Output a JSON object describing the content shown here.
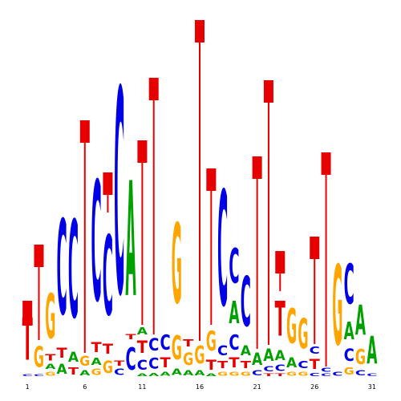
{
  "chart_data": {
    "type": "logo",
    "colors": {
      "A": "#00a000",
      "C": "#0000e6",
      "G": "#ffa500",
      "T": "#e60000",
      "error": "#e60000"
    },
    "ylim": [
      0,
      460
    ],
    "categories": [
      "1",
      null,
      null,
      null,
      null,
      "6",
      null,
      null,
      null,
      null,
      "11",
      null,
      null,
      null,
      null,
      "16",
      null,
      null,
      null,
      null,
      "21",
      null,
      null,
      null,
      null,
      "26",
      null,
      null,
      null,
      null,
      "31"
    ],
    "positions": [
      {
        "letters": [
          "C",
          "T"
        ],
        "values": [
          4,
          85
        ],
        "error": 95
      },
      {
        "letters": [
          "C",
          "G"
        ],
        "values": [
          4,
          42
        ],
        "error": 165
      },
      {
        "letters": [
          "G",
          "A",
          "T",
          "G"
        ],
        "values": [
          8,
          10,
          12,
          90
        ]
      },
      {
        "letters": [
          "A",
          "T",
          "C"
        ],
        "values": [
          20,
          20,
          190
        ]
      },
      {
        "letters": [
          "T",
          "A",
          "C"
        ],
        "values": [
          15,
          20,
          195
        ]
      },
      {
        "letters": [
          "A",
          "G"
        ],
        "values": [
          10,
          20
        ],
        "error": 320
      },
      {
        "letters": [
          "G",
          "A",
          "T",
          "C"
        ],
        "values": [
          12,
          15,
          20,
          240
        ]
      },
      {
        "letters": [
          "G",
          "T",
          "C"
        ],
        "values": [
          25,
          20,
          160
        ],
        "error": 255
      },
      {
        "letters": [
          "C",
          "T",
          "C"
        ],
        "values": [
          12,
          10,
          410
        ]
      },
      {
        "letters": [
          "C",
          "T",
          "A"
        ],
        "values": [
          45,
          10,
          230
        ]
      },
      {
        "letters": [
          "A",
          "C",
          "T",
          "A"
        ],
        "values": [
          5,
          20,
          25,
          15
        ],
        "error": 295
      },
      {
        "letters": [
          "A",
          "C",
          "C"
        ],
        "values": [
          6,
          22,
          25
        ],
        "error": 373
      },
      {
        "letters": [
          "A",
          "T",
          "C"
        ],
        "values": [
          8,
          20,
          30
        ]
      },
      {
        "letters": [
          "A",
          "G",
          "G"
        ],
        "values": [
          12,
          48,
          160
        ]
      },
      {
        "letters": [
          "A",
          "G",
          "T"
        ],
        "values": [
          10,
          25,
          15
        ]
      },
      {
        "letters": [
          "A",
          "G"
        ],
        "values": [
          10,
          35
        ],
        "error": 445
      },
      {
        "letters": [
          "A",
          "T",
          "G"
        ],
        "values": [
          5,
          20,
          40
        ],
        "error": 260
      },
      {
        "letters": [
          "G",
          "T",
          "C",
          "C"
        ],
        "values": [
          8,
          15,
          20,
          230
        ]
      },
      {
        "letters": [
          "G",
          "T",
          "C",
          "A",
          "C"
        ],
        "values": [
          8,
          20,
          30,
          45,
          70
        ]
      },
      {
        "letters": [
          "G",
          "T",
          "A",
          "C"
        ],
        "values": [
          8,
          15,
          20,
          100
        ]
      },
      {
        "letters": [
          "C",
          "A"
        ],
        "values": [
          10,
          25
        ],
        "error": 275
      },
      {
        "letters": [
          "T",
          "C",
          "A"
        ],
        "values": [
          5,
          10,
          25
        ],
        "error": 370
      },
      {
        "letters": [
          "T",
          "C",
          "A",
          "T"
        ],
        "values": [
          5,
          12,
          20,
          70
        ],
        "error": 157
      },
      {
        "letters": [
          "G",
          "A",
          "G"
        ],
        "values": [
          8,
          20,
          70
        ]
      },
      {
        "letters": [
          "G",
          "C",
          "G"
        ],
        "values": [
          8,
          15,
          60
        ]
      },
      {
        "letters": [
          "C",
          "T",
          "C"
        ],
        "values": [
          6,
          20,
          15
        ],
        "error": 175
      },
      {
        "letters": [
          "C",
          "C"
        ],
        "values": [
          5,
          8
        ],
        "error": 280
      },
      {
        "letters": [
          "C",
          "G"
        ],
        "values": [
          8,
          160
        ]
      },
      {
        "letters": [
          "G",
          "C",
          "A",
          "C"
        ],
        "values": [
          15,
          25,
          35,
          80
        ]
      },
      {
        "letters": [
          "C",
          "G",
          "A"
        ],
        "values": [
          10,
          30,
          60
        ]
      },
      {
        "letters": [
          "C",
          "A"
        ],
        "values": [
          5,
          55
        ]
      }
    ]
  }
}
